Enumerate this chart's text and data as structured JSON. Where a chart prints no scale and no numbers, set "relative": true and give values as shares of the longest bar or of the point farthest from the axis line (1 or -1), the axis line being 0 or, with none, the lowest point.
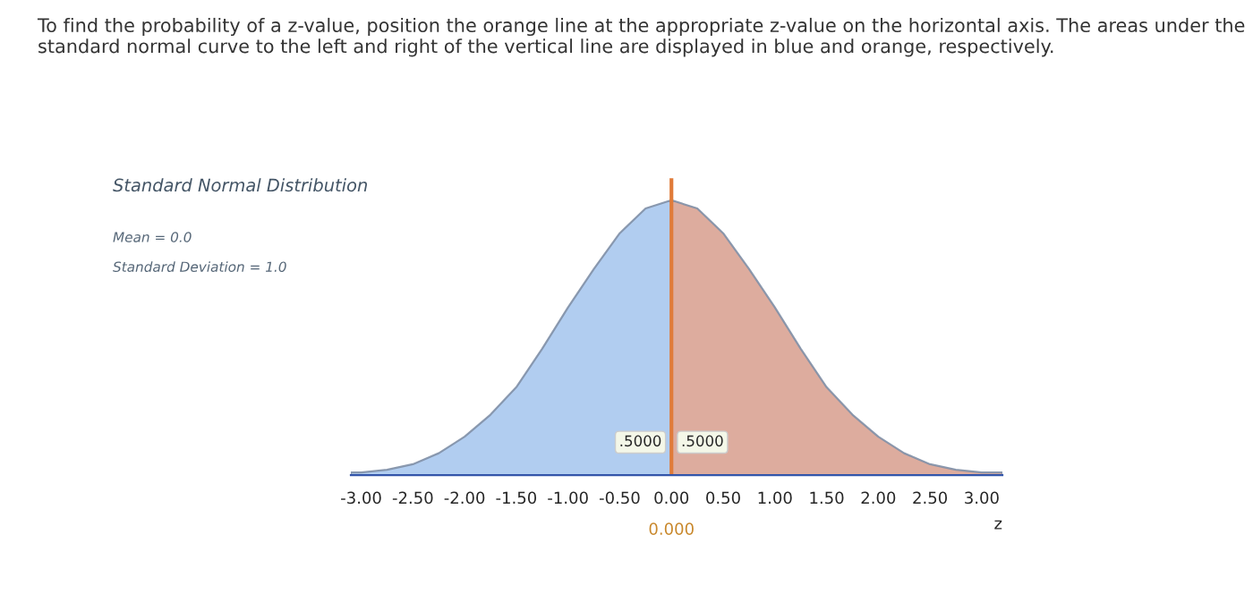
{
  "chart_data": {
    "type": "area",
    "title": "To find the probability of a z-value, position the orange line at the appropriate z-value on the horizontal axis. The areas under the standard normal curve to the left and right of the vertical line are displayed in blue and orange, respectively.",
    "subtitle": "Standard Normal Distribution",
    "xlabel": "z",
    "relative": true,
    "tick_labels": "x",
    "grid": false,
    "legend": false,
    "xlim": [
      -3.1,
      3.2
    ],
    "xticks": [
      {
        "value": -3,
        "label": "-3.00"
      },
      {
        "value": -2.5,
        "label": "-2.50"
      },
      {
        "value": -2,
        "label": "-2.00"
      },
      {
        "value": -1.5,
        "label": "-1.50"
      },
      {
        "value": -1,
        "label": "-1.00"
      },
      {
        "value": -0.5,
        "label": "-0.50"
      },
      {
        "value": 0,
        "label": "0.00"
      },
      {
        "value": 0.5,
        "label": "0.50"
      },
      {
        "value": 1,
        "label": "1.00"
      },
      {
        "value": 1.5,
        "label": "1.50"
      },
      {
        "value": 2,
        "label": "2.00"
      },
      {
        "value": 2.5,
        "label": "2.50"
      },
      {
        "value": 3,
        "label": "3.00"
      }
    ],
    "series": [
      {
        "color": "#a9c8ee",
        "x": [
          -3.1,
          -3,
          -2.75,
          -2.5,
          -2.25,
          -2,
          -1.75,
          -1.5,
          -1.25,
          -1,
          -0.75,
          -0.5,
          -0.25,
          0
        ],
        "values": [
          0.01,
          0.01,
          0.02,
          0.04,
          0.08,
          0.14,
          0.22,
          0.32,
          0.46,
          0.61,
          0.75,
          0.88,
          0.97,
          1.0
        ]
      },
      {
        "color": "#d9a394",
        "x": [
          0,
          0.25,
          0.5,
          0.75,
          1,
          1.25,
          1.5,
          1.75,
          2,
          2.25,
          2.5,
          2.75,
          3,
          3.2
        ],
        "values": [
          1.0,
          0.97,
          0.88,
          0.75,
          0.61,
          0.46,
          0.32,
          0.22,
          0.14,
          0.08,
          0.04,
          0.02,
          0.01,
          0.01
        ]
      }
    ],
    "ref_lines": [
      {
        "axis": "x",
        "value": 0,
        "label": "0.000",
        "color": "#e07b39"
      }
    ],
    "annotations": [
      {
        "text": ".5000",
        "x": -0.3,
        "y": 0.12
      },
      {
        "text": ".5000",
        "x": 0.3,
        "y": 0.12
      },
      "Mean = 0.0",
      "Standard Deviation = 1.0"
    ]
  }
}
